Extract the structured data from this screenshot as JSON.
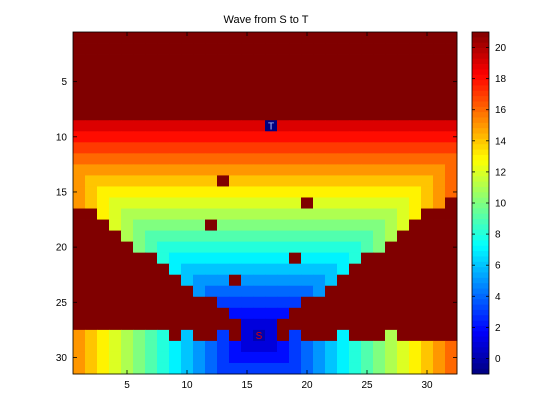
{
  "chart_data": {
    "type": "heatmap",
    "title": "Wave from S to T",
    "xlabel": "",
    "ylabel": "",
    "grid": false,
    "columns": 32,
    "rows": 31,
    "x_ticks": [
      5,
      10,
      15,
      20,
      25,
      30
    ],
    "y_ticks": [
      5,
      10,
      15,
      20,
      25,
      30
    ],
    "colorbar": {
      "colormap": "jet",
      "clim": [
        -1,
        21
      ],
      "ticks": [
        0,
        2,
        4,
        6,
        8,
        10,
        12,
        14,
        16,
        18,
        20
      ]
    },
    "source": {
      "label": "S",
      "col": 16,
      "row": 28,
      "value": 0
    },
    "target": {
      "label": "T",
      "col": 17,
      "row": 9,
      "value": -1
    },
    "background_value": 21,
    "obstacle_value": 21,
    "obstacles": [
      [
        13,
        14
      ],
      [
        20,
        16
      ],
      [
        12,
        18
      ],
      [
        19,
        21
      ],
      [
        14,
        23
      ],
      [
        7,
        24
      ],
      [
        9,
        28
      ],
      [
        11,
        28
      ],
      [
        12,
        28
      ],
      [
        14,
        28
      ],
      [
        18,
        28
      ],
      [
        20,
        28
      ],
      [
        21,
        28
      ],
      [
        22,
        28
      ],
      [
        24,
        28
      ],
      [
        25,
        28
      ],
      [
        26,
        28
      ]
    ],
    "lower_right_block": {
      "cols": [
        28,
        32
      ],
      "rows": [
        24,
        28
      ],
      "value": 21
    }
  }
}
